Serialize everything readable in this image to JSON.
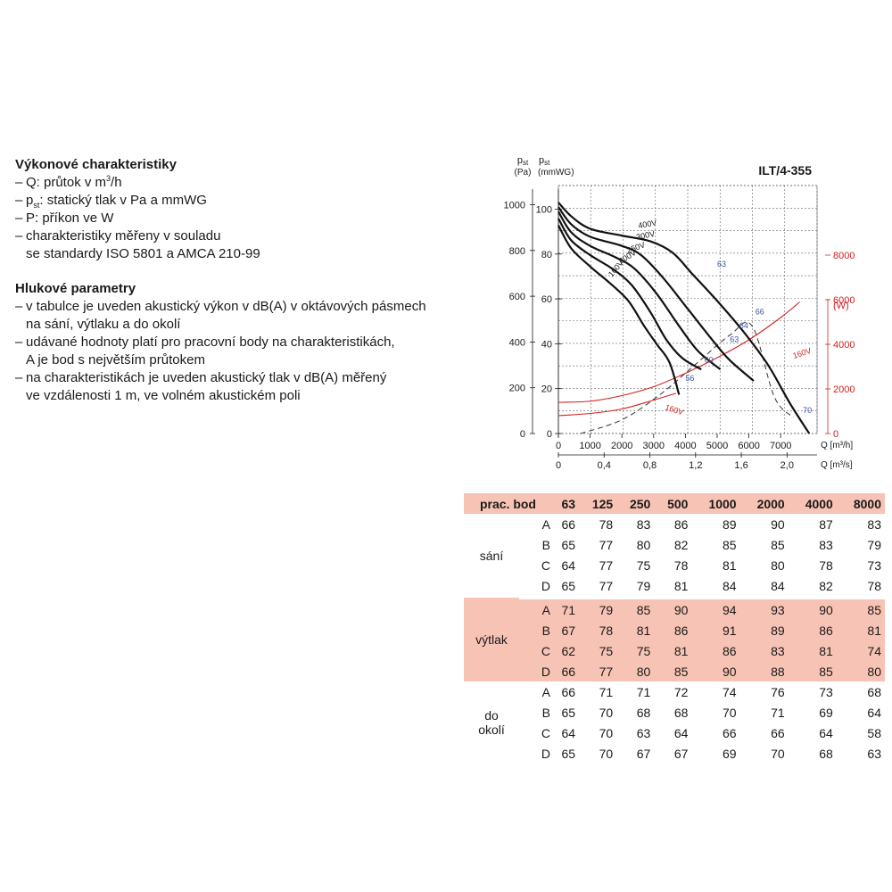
{
  "perf_heading": "Výkonové charakteristiky",
  "perf_items": [
    {
      "pre": "Q: průtok v m",
      "sup": "3",
      "post": "/h"
    },
    {
      "pre": "p",
      "sub": "st",
      "post": ": statický tlak v Pa a mmWG"
    },
    {
      "pre": "P: příkon ve W"
    },
    {
      "pre": "charakteristiky měřeny v souladu",
      "line2": "se standardy ISO 5801 a AMCA 210-99"
    }
  ],
  "noise_heading": "Hlukové parametry",
  "noise_items": [
    {
      "pre": "v tabulce je uveden akustický výkon v dB(A) v oktávových pásmech",
      "line2": "na sání, výtlaku a do okolí"
    },
    {
      "pre": "udávané hodnoty platí pro pracovní body na charakteristikách,",
      "line2": "A je bod s největším průtokem"
    },
    {
      "pre": "na charakteristikách je uveden akustický tlak v dB(A) měřený",
      "line2": "ve vzdálenosti 1 m, ve volném akustickém poli"
    }
  ],
  "chart_data": {
    "type": "line",
    "title": "ILT/4-355",
    "y_left_label": [
      "p",
      "st",
      "(Pa)"
    ],
    "y_mmwg_label": [
      "p",
      "st",
      "(mmWG)"
    ],
    "y_power_label": "(W)",
    "x_label": "Q [m³/h]",
    "x2_label": "Q [m³/s]",
    "xlim": [
      0,
      8000
    ],
    "ylim": [
      0,
      1050
    ],
    "x_ticks": [
      0,
      1000,
      2000,
      3000,
      4000,
      5000,
      6000,
      7000
    ],
    "x2_ticks": [
      {
        "v": 0,
        "label": "0"
      },
      {
        "v": 0.4,
        "label": "0,4"
      },
      {
        "v": 0.8,
        "label": "0,8"
      },
      {
        "v": 1.2,
        "label": "1,2"
      },
      {
        "v": 1.6,
        "label": "1,6"
      },
      {
        "v": 2.0,
        "label": "2,0"
      }
    ],
    "y_ticks": [
      0,
      200,
      400,
      600,
      800,
      1000
    ],
    "mmwg_ticks": [
      0,
      20,
      40,
      60,
      80,
      100
    ],
    "power_ticks": [
      0,
      2000,
      4000,
      6000,
      8000
    ],
    "power_max": 8800,
    "grid": true,
    "series": [
      {
        "name": "400V",
        "color": "#111111",
        "x": [
          0,
          400,
          1000,
          2000,
          2900,
          3600,
          4200,
          5000,
          5800,
          6600,
          7300,
          7900
        ],
        "y": [
          1010,
          950,
          895,
          865,
          840,
          790,
          700,
          580,
          450,
          300,
          130,
          0
        ]
      },
      {
        "name": "300V",
        "color": "#111111",
        "x": [
          0,
          400,
          1000,
          2000,
          2600,
          3300,
          4100,
          4900,
          5400,
          6150
        ],
        "y": [
          990,
          915,
          860,
          820,
          780,
          680,
          540,
          400,
          320,
          230
        ]
      },
      {
        "name": "250V",
        "color": "#111111",
        "x": [
          0,
          400,
          1000,
          1800,
          2400,
          3100,
          3800,
          4400,
          5100
        ],
        "y": [
          970,
          880,
          820,
          770,
          720,
          610,
          470,
          360,
          280
        ]
      },
      {
        "name": "200V",
        "color": "#111111",
        "x": [
          0,
          400,
          1000,
          1700,
          2300,
          2900,
          3400,
          3900,
          4500
        ],
        "y": [
          940,
          845,
          780,
          720,
          650,
          530,
          410,
          330,
          280
        ]
      },
      {
        "name": "160V",
        "color": "#111111",
        "x": [
          0,
          400,
          1000,
          1600,
          2200,
          2700,
          3100,
          3500,
          3800
        ],
        "y": [
          910,
          810,
          730,
          660,
          580,
          470,
          390,
          310,
          170
        ]
      }
    ],
    "system_curve": {
      "x": [
        700,
        2000,
        3200,
        4300,
        5400,
        6100,
        6800,
        7400
      ],
      "y": [
        0,
        60,
        170,
        300,
        430,
        470,
        160,
        70
      ]
    },
    "power_series": [
      {
        "name": "160V",
        "color": "#d42020",
        "x": [
          0,
          1000,
          2000,
          3000,
          4000,
          5000,
          6000,
          7000,
          7600
        ],
        "y": [
          1400,
          1450,
          1700,
          2100,
          2700,
          3400,
          4200,
          5200,
          5900
        ]
      },
      {
        "name": "160V",
        "color": "#d42020",
        "x": [
          0,
          1000,
          2000,
          3000,
          3700
        ],
        "y": [
          800,
          900,
          1100,
          1500,
          1800
        ]
      }
    ],
    "noise_labels": [
      {
        "text": "63",
        "x": 5000,
        "y": 730
      },
      {
        "text": "66",
        "x": 6200,
        "y": 520
      },
      {
        "text": "64",
        "x": 5700,
        "y": 460
      },
      {
        "text": "63",
        "x": 5400,
        "y": 400
      },
      {
        "text": "60",
        "x": 4600,
        "y": 310
      },
      {
        "text": "56",
        "x": 4000,
        "y": 230
      },
      {
        "text": "70",
        "x": 7700,
        "y": 90
      }
    ]
  },
  "table": {
    "header": [
      "prac. bod",
      "63",
      "125",
      "250",
      "500",
      "1000",
      "2000",
      "4000",
      "8000"
    ],
    "groups": [
      {
        "name": [
          "sání"
        ],
        "shaded": false,
        "rows": [
          {
            "point": "A",
            "values": [
              "66",
              "78",
              "83",
              "86",
              "89",
              "90",
              "87",
              "83"
            ]
          },
          {
            "point": "B",
            "values": [
              "65",
              "77",
              "80",
              "82",
              "85",
              "85",
              "83",
              "79"
            ]
          },
          {
            "point": "C",
            "values": [
              "64",
              "77",
              "75",
              "78",
              "81",
              "80",
              "78",
              "73"
            ]
          },
          {
            "point": "D",
            "values": [
              "65",
              "77",
              "79",
              "81",
              "84",
              "84",
              "82",
              "78"
            ]
          }
        ]
      },
      {
        "name": [
          "výtlak"
        ],
        "shaded": true,
        "rows": [
          {
            "point": "A",
            "values": [
              "71",
              "79",
              "85",
              "90",
              "94",
              "93",
              "90",
              "85"
            ]
          },
          {
            "point": "B",
            "values": [
              "67",
              "78",
              "81",
              "86",
              "91",
              "89",
              "86",
              "81"
            ]
          },
          {
            "point": "C",
            "values": [
              "62",
              "75",
              "75",
              "81",
              "86",
              "83",
              "81",
              "74"
            ]
          },
          {
            "point": "D",
            "values": [
              "66",
              "77",
              "80",
              "85",
              "90",
              "88",
              "85",
              "80"
            ]
          }
        ]
      },
      {
        "name": [
          "do",
          "okolí"
        ],
        "shaded": false,
        "rows": [
          {
            "point": "A",
            "values": [
              "66",
              "71",
              "71",
              "72",
              "74",
              "76",
              "73",
              "68"
            ]
          },
          {
            "point": "B",
            "values": [
              "65",
              "70",
              "68",
              "68",
              "70",
              "71",
              "69",
              "64"
            ]
          },
          {
            "point": "C",
            "values": [
              "64",
              "70",
              "63",
              "64",
              "66",
              "66",
              "64",
              "58"
            ]
          },
          {
            "point": "D",
            "values": [
              "65",
              "70",
              "67",
              "67",
              "69",
              "70",
              "68",
              "63"
            ]
          }
        ]
      }
    ]
  }
}
